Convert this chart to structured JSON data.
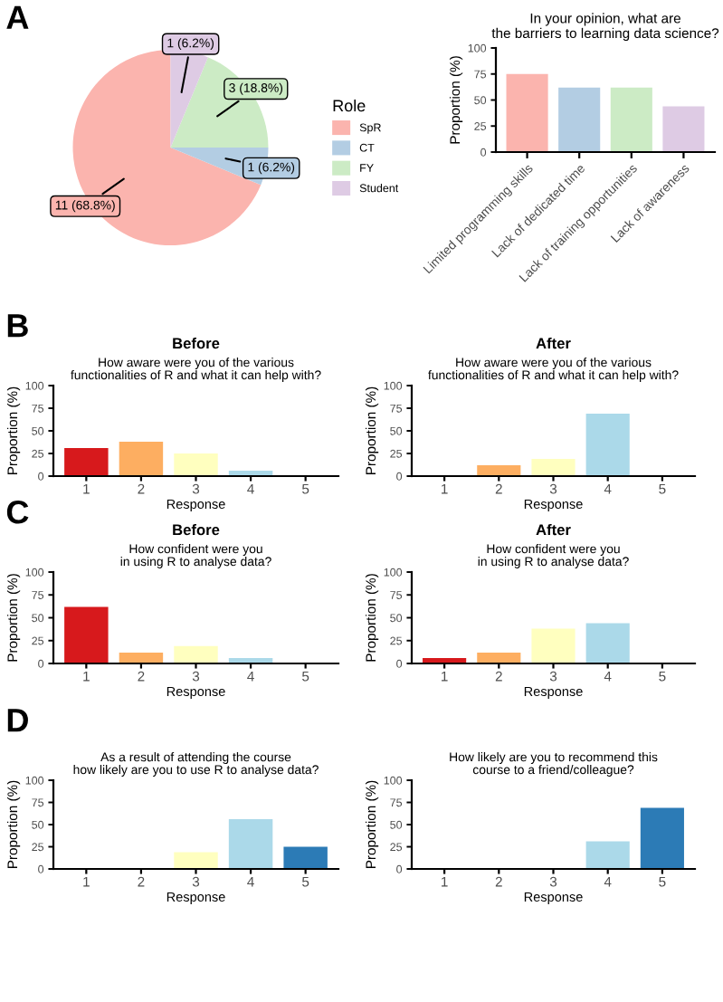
{
  "chart_data": [
    {
      "type": "pie",
      "categories": [
        "SpR",
        "CT",
        "FY",
        "Student"
      ],
      "values": [
        11,
        1,
        3,
        1
      ],
      "colors": [
        "#fbb4ae",
        "#b3cde3",
        "#ccebc5",
        "#decbe4"
      ],
      "value_labels": [
        "11 (68.8%)",
        "1 (6.2%)",
        "3 (18.8%)",
        "1 (6.2%)"
      ],
      "legend_title": "Role",
      "legend": "right",
      "annotations": [
        "A"
      ]
    },
    {
      "type": "bar",
      "title": "In your opinion, what are\nthe barriers to learning data science?",
      "ylabel": "Proportion (%)",
      "categories": [
        "Limited programming skills",
        "Lack of dedicated time",
        "Lack of training opportunities",
        "Lack of awareness"
      ],
      "values": [
        75,
        62,
        62,
        44
      ],
      "colors": [
        "#fbb4ae",
        "#b3cde3",
        "#ccebc5",
        "#decbe4"
      ],
      "ylim": [
        0,
        100
      ],
      "yticks": [
        0,
        25,
        50,
        75,
        100
      ],
      "grid": false
    },
    {
      "type": "bar",
      "title": "Before",
      "subtitle": "How aware were you of the various\nfunctionalities of R and what it can help with?",
      "xlabel": "Response",
      "ylabel": "Proportion (%)",
      "categories": [
        "1",
        "2",
        "3",
        "4",
        "5"
      ],
      "values": [
        31,
        38,
        25,
        6,
        0
      ],
      "colors": [
        "#d7191c",
        "#fdae61",
        "#ffffbf",
        "#abd9e9",
        "#2c7bb6"
      ],
      "ylim": [
        0,
        100
      ],
      "yticks": [
        0,
        25,
        50,
        75,
        100
      ],
      "grid": false,
      "annotations": [
        "B"
      ]
    },
    {
      "type": "bar",
      "title": "After",
      "subtitle": "How aware were you of the various\nfunctionalities of R and what it can help with?",
      "xlabel": "Response",
      "ylabel": "Proportion (%)",
      "categories": [
        "1",
        "2",
        "3",
        "4",
        "5"
      ],
      "values": [
        0,
        12,
        19,
        69,
        0
      ],
      "colors": [
        "#d7191c",
        "#fdae61",
        "#ffffbf",
        "#abd9e9",
        "#2c7bb6"
      ],
      "ylim": [
        0,
        100
      ],
      "yticks": [
        0,
        25,
        50,
        75,
        100
      ],
      "grid": false
    },
    {
      "type": "bar",
      "title": "Before",
      "subtitle": "How confident were you\nin using R to analyse data?",
      "xlabel": "Response",
      "ylabel": "Proportion (%)",
      "categories": [
        "1",
        "2",
        "3",
        "4",
        "5"
      ],
      "values": [
        62,
        12,
        19,
        6,
        0
      ],
      "colors": [
        "#d7191c",
        "#fdae61",
        "#ffffbf",
        "#abd9e9",
        "#2c7bb6"
      ],
      "ylim": [
        0,
        100
      ],
      "yticks": [
        0,
        25,
        50,
        75,
        100
      ],
      "grid": false,
      "annotations": [
        "C"
      ]
    },
    {
      "type": "bar",
      "title": "After",
      "subtitle": "How confident were you\nin using R to analyse data?",
      "xlabel": "Response",
      "ylabel": "Proportion (%)",
      "categories": [
        "1",
        "2",
        "3",
        "4",
        "5"
      ],
      "values": [
        6,
        12,
        38,
        44,
        0
      ],
      "colors": [
        "#d7191c",
        "#fdae61",
        "#ffffbf",
        "#abd9e9",
        "#2c7bb6"
      ],
      "ylim": [
        0,
        100
      ],
      "yticks": [
        0,
        25,
        50,
        75,
        100
      ],
      "grid": false
    },
    {
      "type": "bar",
      "subtitle": "As a result of attending the course\nhow likely are you to use R to analyse data?",
      "xlabel": "Response",
      "ylabel": "Proportion (%)",
      "categories": [
        "1",
        "2",
        "3",
        "4",
        "5"
      ],
      "values": [
        0,
        0,
        19,
        56,
        25
      ],
      "colors": [
        "#d7191c",
        "#fdae61",
        "#ffffbf",
        "#abd9e9",
        "#2c7bb6"
      ],
      "ylim": [
        0,
        100
      ],
      "yticks": [
        0,
        25,
        50,
        75,
        100
      ],
      "grid": false,
      "annotations": [
        "D"
      ]
    },
    {
      "type": "bar",
      "subtitle": "How likely are you to recommend this\ncourse to a friend/colleague?",
      "xlabel": "Response",
      "ylabel": "Proportion (%)",
      "categories": [
        "1",
        "2",
        "3",
        "4",
        "5"
      ],
      "values": [
        0,
        0,
        0,
        31,
        69
      ],
      "colors": [
        "#d7191c",
        "#fdae61",
        "#ffffbf",
        "#abd9e9",
        "#2c7bb6"
      ],
      "ylim": [
        0,
        100
      ],
      "yticks": [
        0,
        25,
        50,
        75,
        100
      ],
      "grid": false
    }
  ]
}
